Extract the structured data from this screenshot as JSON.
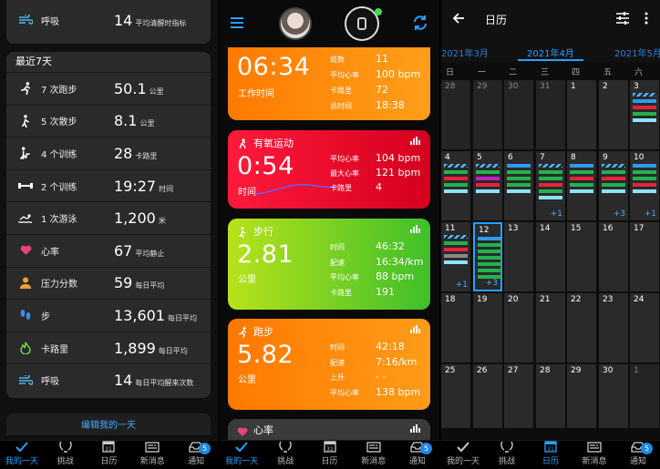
{
  "panel1": {
    "top_row": {
      "label": "呼吸",
      "value": "14",
      "unit": "平均清醒时指标"
    },
    "section_title": "最近7天",
    "rows": [
      {
        "icon": "running-icon",
        "label": "7 次跑步",
        "value": "50.1",
        "unit": "公里",
        "color": "#ffffff"
      },
      {
        "icon": "walking-icon",
        "label": "5 次散步",
        "value": "8.1",
        "unit": "公里",
        "color": "#ffffff"
      },
      {
        "icon": "stairs-icon",
        "label": "4 个训练",
        "value": "28",
        "unit": "卡路里",
        "color": "#ffffff"
      },
      {
        "icon": "dumbbell-icon",
        "label": "2 个训练",
        "value": "19:27",
        "unit": "时间",
        "color": "#ffffff"
      },
      {
        "icon": "swimming-icon",
        "label": "1 次游泳",
        "value": "1,200",
        "unit": "米",
        "color": "#ffffff"
      },
      {
        "icon": "heart-icon",
        "label": "心率",
        "value": "67",
        "unit": "平均静止",
        "color": "#e8457a"
      },
      {
        "icon": "stress-icon",
        "label": "压力分数",
        "value": "59",
        "unit": "每日平均",
        "color": "#f2a13a"
      },
      {
        "icon": "steps-icon",
        "label": "步",
        "value": "13,601",
        "unit": "每日平均",
        "color": "#3d8fe0"
      },
      {
        "icon": "flame-icon",
        "label": "卡路里",
        "value": "1,899",
        "unit": "每日平均",
        "color": "#7ed957"
      },
      {
        "icon": "breath-icon",
        "label": "呼吸",
        "value": "14",
        "unit": "每日平均醒来次数",
        "color": "#4ab8e8"
      }
    ],
    "edit_link": "编辑我的一天"
  },
  "nav": {
    "items": [
      "我的一天",
      "挑战",
      "日历",
      "新消息",
      "通知"
    ],
    "badge": "5",
    "calendar_day": "31"
  },
  "panel2": {
    "card1": {
      "big": "06:34",
      "sub": "工作时间",
      "rows": [
        [
          "组数",
          "11"
        ],
        [
          "平均心率",
          "100 bpm"
        ],
        [
          "卡路里",
          "72"
        ],
        [
          "总时间",
          "18:38"
        ]
      ]
    },
    "card2": {
      "title": "有氧运动",
      "big": "0:54",
      "sub": "时间",
      "rows": [
        [
          "平均心率",
          "104 bpm"
        ],
        [
          "最大心率",
          "121 bpm"
        ],
        [
          "卡路里",
          "4"
        ]
      ]
    },
    "card3": {
      "title": "步行",
      "big": "2.81",
      "sub": "公里",
      "rows": [
        [
          "时间",
          "46:32"
        ],
        [
          "配速",
          "16:34/km"
        ],
        [
          "平均心率",
          "88 bpm"
        ],
        [
          "卡路里",
          "191"
        ]
      ]
    },
    "card4": {
      "title": "跑步",
      "big": "5.82",
      "sub": "公里",
      "rows": [
        [
          "时间",
          "42:18"
        ],
        [
          "配速",
          "7:16/km"
        ],
        [
          "上升",
          "- -"
        ],
        [
          "平均心率",
          "138 bpm"
        ]
      ]
    },
    "card5": {
      "title": "心率"
    }
  },
  "panel3": {
    "title": "日历",
    "months": [
      "2021年3月",
      "2021年4月",
      "2021年5月"
    ],
    "weekdays": [
      "日",
      "一",
      "二",
      "三",
      "四",
      "五",
      "六"
    ],
    "weeks": [
      [
        "28",
        "29",
        "30",
        "31",
        "1",
        "2",
        "3"
      ],
      [
        "4",
        "5",
        "6",
        "7",
        "8",
        "9",
        "10"
      ],
      [
        "11",
        "12",
        "13",
        "14",
        "15",
        "16",
        "17"
      ],
      [
        "18",
        "19",
        "20",
        "21",
        "22",
        "23",
        "24"
      ],
      [
        "25",
        "26",
        "27",
        "28",
        "29",
        "30",
        "1"
      ]
    ],
    "more_labels": {
      "w1_d3": "+1",
      "w1_d5": "+3",
      "w1_d6": "+1",
      "w2_d0": "+1",
      "w2_d1": "+3"
    }
  }
}
